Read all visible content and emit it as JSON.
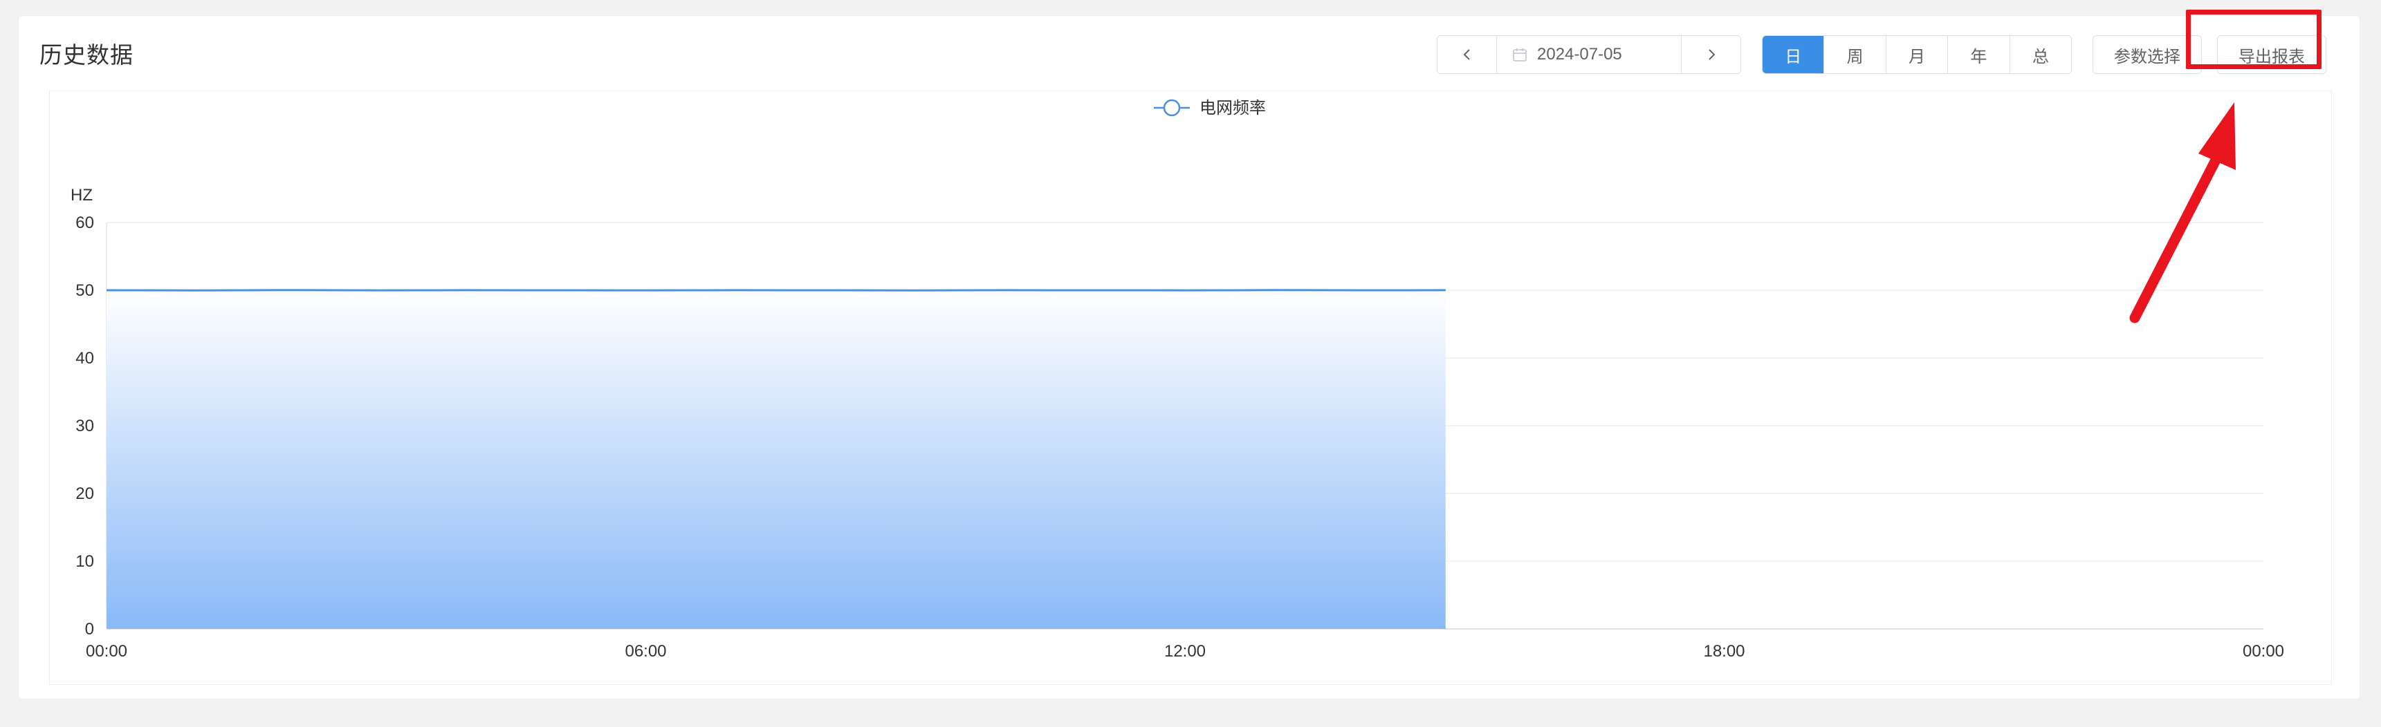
{
  "page": {
    "title": "历史数据"
  },
  "date_picker": {
    "value": "2024-07-05",
    "prev_icon": "chevron-left-icon",
    "next_icon": "chevron-right-icon",
    "calendar_icon": "calendar-icon"
  },
  "period_tabs": [
    {
      "label": "日",
      "active": true
    },
    {
      "label": "周",
      "active": false
    },
    {
      "label": "月",
      "active": false
    },
    {
      "label": "年",
      "active": false
    },
    {
      "label": "总",
      "active": false
    }
  ],
  "actions": {
    "params_label": "参数选择",
    "export_label": "导出报表"
  },
  "colors": {
    "accent": "#3a8ee6",
    "series": "#4a90e2",
    "highlight": "#e8141e"
  },
  "chart_data": {
    "type": "area",
    "title": "",
    "xlabel": "",
    "ylabel": "HZ",
    "x_tick_labels": [
      "00:00",
      "06:00",
      "12:00",
      "18:00",
      "00:00"
    ],
    "y_ticks": [
      0,
      10,
      20,
      30,
      40,
      50,
      60
    ],
    "ylim": [
      0,
      60
    ],
    "x_range_hours": [
      0,
      24
    ],
    "grid": true,
    "legend_position": "top-center",
    "series": [
      {
        "name": "电网频率",
        "x_hours": [
          0,
          1,
          2,
          3,
          4,
          5,
          6,
          7,
          8,
          9,
          10,
          11,
          12,
          13,
          14,
          14.9
        ],
        "values": [
          50.0,
          49.98,
          50.02,
          49.99,
          50.01,
          50.0,
          49.99,
          50.01,
          50.0,
          49.98,
          50.01,
          50.0,
          49.99,
          50.02,
          50.0,
          50.01
        ]
      }
    ]
  }
}
